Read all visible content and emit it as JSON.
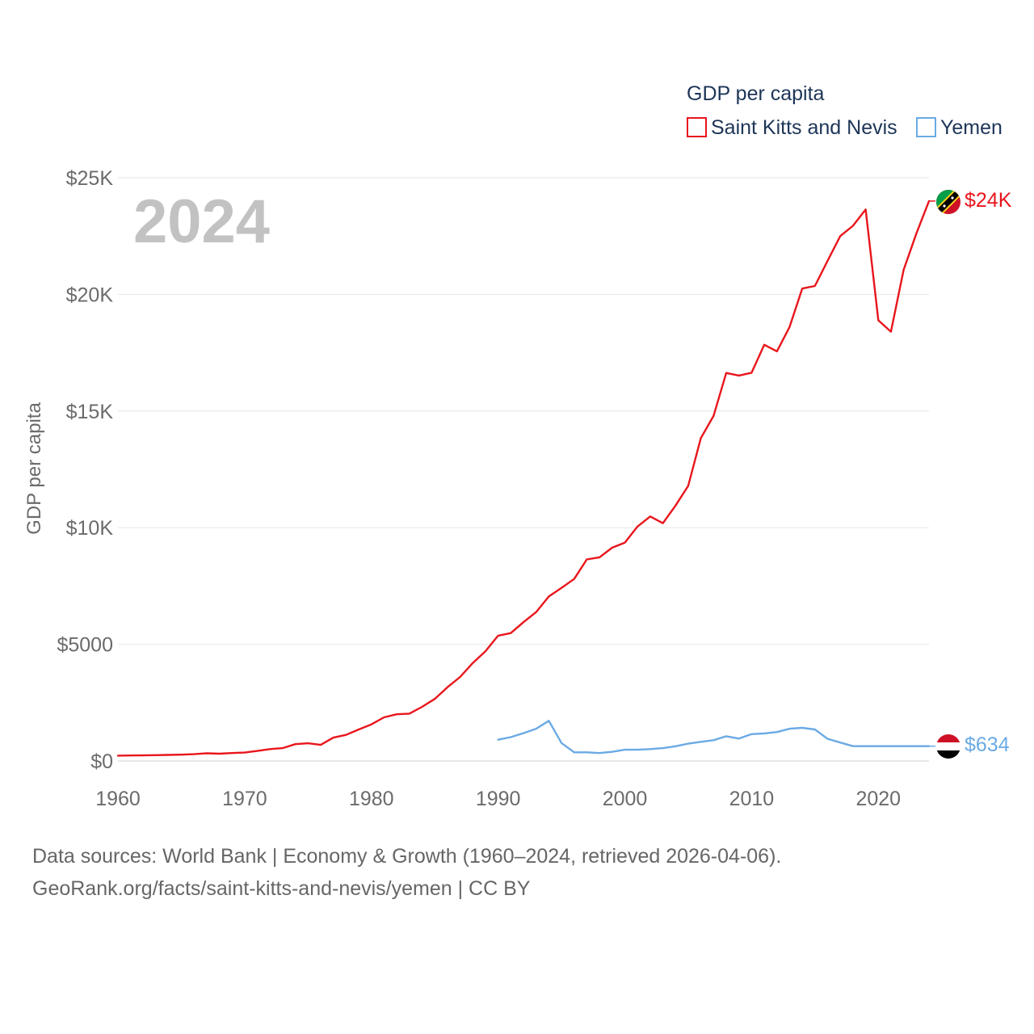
{
  "chart_data": {
    "type": "line",
    "title": "GDP per capita",
    "ylabel": "GDP per capita",
    "xlabel": "",
    "year_watermark": "2024",
    "xlim": [
      1960,
      2024
    ],
    "ylim": [
      0,
      25000
    ],
    "x_ticks": [
      1960,
      1970,
      1980,
      1990,
      2000,
      2010,
      2020
    ],
    "x_tick_labels": [
      "1960",
      "1970",
      "1980",
      "1990",
      "2000",
      "2010",
      "2020"
    ],
    "y_ticks": [
      0,
      5000,
      10000,
      15000,
      20000,
      25000
    ],
    "y_tick_labels": [
      "$0",
      "$5000",
      "$10K",
      "$15K",
      "$20K",
      "$25K"
    ],
    "grid": true,
    "legend_position": "top-right",
    "series": [
      {
        "name": "Saint Kitts and Nevis",
        "color": "#e8161c",
        "end_label": "$24K",
        "x": [
          1960,
          1961,
          1962,
          1963,
          1964,
          1965,
          1966,
          1967,
          1968,
          1969,
          1970,
          1971,
          1972,
          1973,
          1974,
          1975,
          1976,
          1977,
          1978,
          1979,
          1980,
          1981,
          1982,
          1983,
          1984,
          1985,
          1986,
          1987,
          1988,
          1989,
          1990,
          1991,
          1992,
          1993,
          1994,
          1995,
          1996,
          1997,
          1998,
          1999,
          2000,
          2001,
          2002,
          2003,
          2004,
          2005,
          2006,
          2007,
          2008,
          2009,
          2010,
          2011,
          2012,
          2013,
          2014,
          2015,
          2016,
          2017,
          2018,
          2019,
          2020,
          2021,
          2022,
          2023,
          2024
        ],
        "values": [
          230,
          235,
          240,
          250,
          260,
          270,
          290,
          330,
          310,
          340,
          360,
          430,
          510,
          550,
          720,
          760,
          690,
          1000,
          1120,
          1350,
          1570,
          1870,
          2000,
          2030,
          2320,
          2660,
          3160,
          3600,
          4200,
          4700,
          5370,
          5480,
          5950,
          6380,
          7050,
          7420,
          7800,
          8640,
          8730,
          9140,
          9360,
          10050,
          10480,
          10190,
          10950,
          11790,
          13840,
          14790,
          16630,
          16520,
          16640,
          17840,
          17560,
          18600,
          20250,
          20360,
          21440,
          22500,
          22940,
          23640,
          18890,
          18400,
          21050,
          22600,
          24000
        ]
      },
      {
        "name": "Yemen",
        "color": "#6aaae4",
        "end_label": "$634",
        "x": [
          1990,
          1991,
          1992,
          1993,
          1994,
          1995,
          1996,
          1997,
          1998,
          1999,
          2000,
          2001,
          2002,
          2003,
          2004,
          2005,
          2006,
          2007,
          2008,
          2009,
          2010,
          2011,
          2012,
          2013,
          2014,
          2015,
          2016,
          2017,
          2018,
          2019,
          2020,
          2021,
          2022,
          2023,
          2024
        ],
        "values": [
          910,
          1020,
          1190,
          1380,
          1720,
          770,
          370,
          370,
          340,
          390,
          480,
          480,
          510,
          550,
          630,
          740,
          820,
          890,
          1060,
          960,
          1150,
          1180,
          1240,
          1380,
          1420,
          1350,
          950,
          790,
          634,
          634,
          634,
          634,
          634,
          634,
          634
        ]
      }
    ],
    "footer": {
      "line1": "Data sources: World Bank | Economy & Growth (1960–2024, retrieved 2026-04-06).",
      "line2": "GeoRank.org/facts/saint-kitts-and-nevis/yemen | CC BY"
    }
  },
  "colors": {
    "axis_text": "#6b6b6b",
    "legend_text": "#1d3557",
    "grid": "#e6e6e6",
    "watermark": "#c2c2c2"
  }
}
